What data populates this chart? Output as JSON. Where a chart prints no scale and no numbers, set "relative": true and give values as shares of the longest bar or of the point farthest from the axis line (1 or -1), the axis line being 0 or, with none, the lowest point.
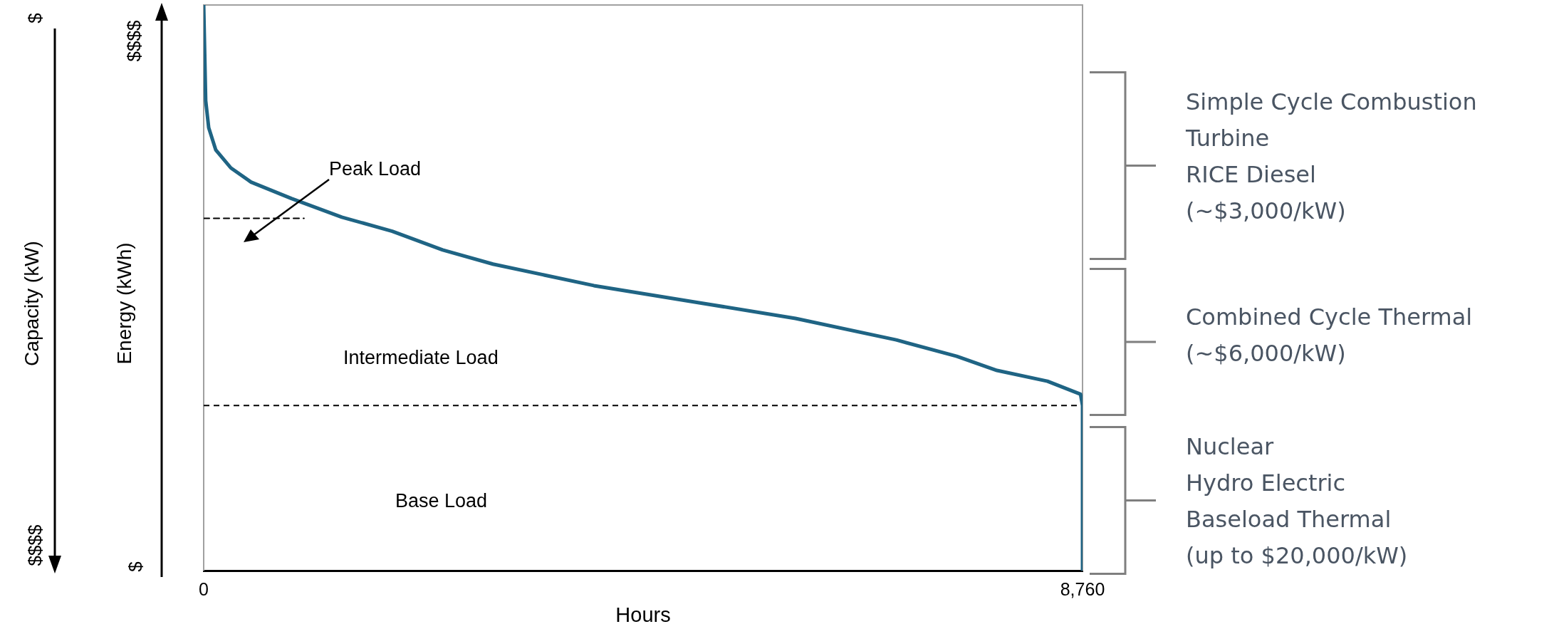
{
  "chart_data": {
    "type": "line",
    "relative": true,
    "xlabel": "Hours",
    "ylabel": "Energy (kWh)",
    "xlim": [
      0,
      8760
    ],
    "xticks": [
      0,
      {
        "value": 8760,
        "label": "8,760"
      }
    ],
    "marker": "none",
    "series": [
      {
        "color": "#1f6484",
        "line_style": "solid",
        "x": [
          0,
          20,
          50,
          120,
          271,
          472,
          874,
          1377,
          1879,
          2382,
          2884,
          3889,
          4894,
          5899,
          6903,
          7506,
          7908,
          8410,
          8740,
          8760,
          8760
        ],
        "values": [
          1.0,
          0.831,
          0.783,
          0.744,
          0.712,
          0.687,
          0.658,
          0.625,
          0.6,
          0.567,
          0.542,
          0.504,
          0.475,
          0.446,
          0.408,
          0.379,
          0.354,
          0.335,
          0.312,
          0.292,
          0
        ]
      },
      {
        "type": "line",
        "color": "#000000",
        "line_style": "dashed",
        "x": [
          0,
          1000
        ],
        "values": [
          0.623,
          0.623
        ]
      }
    ],
    "ref_lines": [
      {
        "axis": "y",
        "value": 0.292,
        "color": "#000000",
        "line_style": "dashed"
      }
    ],
    "annotations": [
      "Peak Load",
      "Capacity (kW)",
      "Intermediate Load",
      "Base Load",
      "$",
      "$$$$",
      "$$$$",
      "$",
      "Simple Cycle Combustion Turbine\nRICE Diesel\n(~$3,000/kW)",
      "Combined Cycle Thermal\n(~$6,000/kW)",
      "Nuclear\nHydro Electric\nBaseload Thermal\n(up to $20,000/kW)"
    ]
  }
}
